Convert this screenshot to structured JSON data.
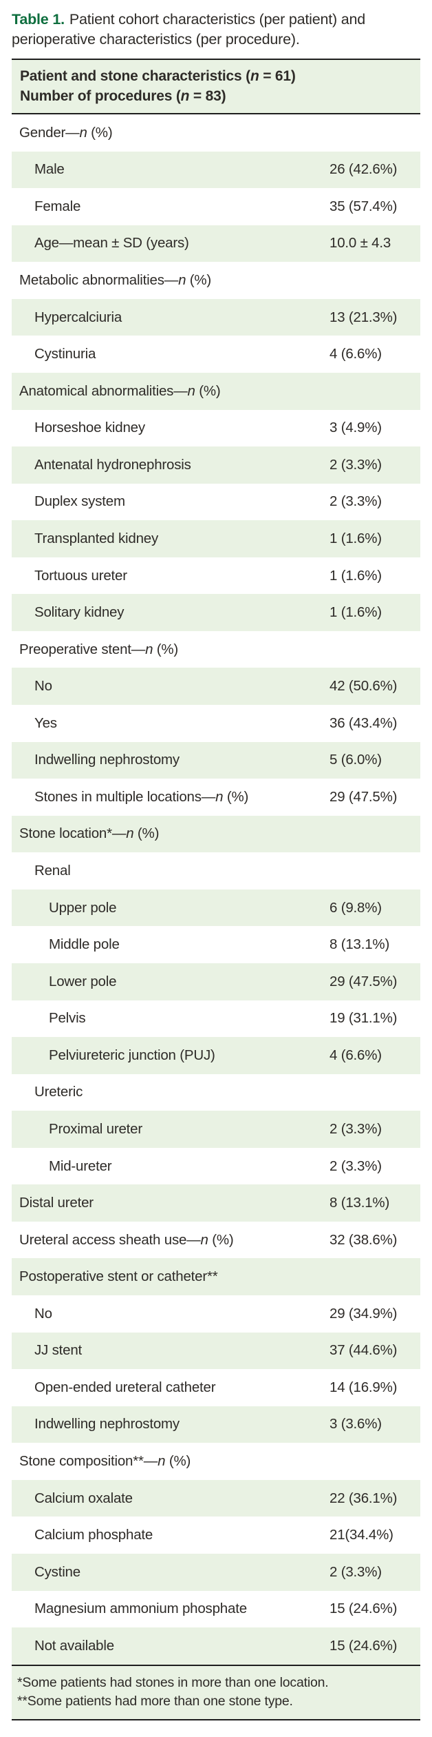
{
  "title": {
    "label": "Table 1.",
    "text": "Patient cohort characteristics (per patient) and perioperative characteristics (per procedure)."
  },
  "header": {
    "lines": [
      "Patient and stone characteristics (n = 61)",
      "Number of procedures (n = 83)"
    ]
  },
  "table": {
    "rows": [
      {
        "label": "Gender—n (%)",
        "value": "",
        "indent": 0,
        "shaded": false
      },
      {
        "label": "Male",
        "value": "26 (42.6%)",
        "indent": 1,
        "shaded": true
      },
      {
        "label": "Female",
        "value": "35 (57.4%)",
        "indent": 1,
        "shaded": false
      },
      {
        "label": "Age—mean ± SD (years)",
        "value": "10.0 ± 4.3",
        "indent": 1,
        "shaded": true
      },
      {
        "label": "Metabolic abnormalities—n (%)",
        "value": "",
        "indent": 0,
        "shaded": false
      },
      {
        "label": "Hypercalciuria",
        "value": "13 (21.3%)",
        "indent": 1,
        "shaded": true
      },
      {
        "label": "Cystinuria",
        "value": "4 (6.6%)",
        "indent": 1,
        "shaded": false
      },
      {
        "label": "Anatomical abnormalities—n (%)",
        "value": "",
        "indent": 0,
        "shaded": true
      },
      {
        "label": "Horseshoe kidney",
        "value": "3 (4.9%)",
        "indent": 1,
        "shaded": false
      },
      {
        "label": "Antenatal hydronephrosis",
        "value": "2 (3.3%)",
        "indent": 1,
        "shaded": true
      },
      {
        "label": "Duplex system",
        "value": "2 (3.3%)",
        "indent": 1,
        "shaded": false
      },
      {
        "label": "Transplanted kidney",
        "value": "1 (1.6%)",
        "indent": 1,
        "shaded": true
      },
      {
        "label": "Tortuous ureter",
        "value": "1 (1.6%)",
        "indent": 1,
        "shaded": false
      },
      {
        "label": "Solitary kidney",
        "value": "1 (1.6%)",
        "indent": 1,
        "shaded": true
      },
      {
        "label": "Preoperative stent—n (%)",
        "value": "",
        "indent": 0,
        "shaded": false
      },
      {
        "label": "No",
        "value": "42 (50.6%)",
        "indent": 1,
        "shaded": true
      },
      {
        "label": "Yes",
        "value": "36 (43.4%)",
        "indent": 1,
        "shaded": false
      },
      {
        "label": "Indwelling nephrostomy",
        "value": "5 (6.0%)",
        "indent": 1,
        "shaded": true
      },
      {
        "label": "Stones in multiple locations—n (%)",
        "value": "29 (47.5%)",
        "indent": 1,
        "shaded": false
      },
      {
        "label": "Stone location*—n (%)",
        "value": "",
        "indent": 0,
        "shaded": true
      },
      {
        "label": "Renal",
        "value": "",
        "indent": 1,
        "shaded": false
      },
      {
        "label": "Upper pole",
        "value": "6 (9.8%)",
        "indent": 2,
        "shaded": true
      },
      {
        "label": "Middle pole",
        "value": "8 (13.1%)",
        "indent": 2,
        "shaded": false
      },
      {
        "label": "Lower pole",
        "value": "29 (47.5%)",
        "indent": 2,
        "shaded": true
      },
      {
        "label": "Pelvis",
        "value": "19 (31.1%)",
        "indent": 2,
        "shaded": false
      },
      {
        "label": "Pelviureteric junction (PUJ)",
        "value": "4 (6.6%)",
        "indent": 2,
        "shaded": true
      },
      {
        "label": "Ureteric",
        "value": "",
        "indent": 1,
        "shaded": false
      },
      {
        "label": "Proximal ureter",
        "value": "2 (3.3%)",
        "indent": 2,
        "shaded": true
      },
      {
        "label": "Mid-ureter",
        "value": "2 (3.3%)",
        "indent": 2,
        "shaded": false
      },
      {
        "label": "Distal ureter",
        "value": "8 (13.1%)",
        "indent": 0,
        "shaded": true
      },
      {
        "label": "Ureteral access sheath use—n (%)",
        "value": "32 (38.6%)",
        "indent": 0,
        "shaded": false
      },
      {
        "label": "Postoperative stent or catheter**",
        "value": "",
        "indent": 0,
        "shaded": true
      },
      {
        "label": "No",
        "value": "29 (34.9%)",
        "indent": 1,
        "shaded": false
      },
      {
        "label": "JJ stent",
        "value": "37 (44.6%)",
        "indent": 1,
        "shaded": true
      },
      {
        "label": "Open-ended ureteral catheter",
        "value": "14 (16.9%)",
        "indent": 1,
        "shaded": false
      },
      {
        "label": "Indwelling nephrostomy",
        "value": "3 (3.6%)",
        "indent": 1,
        "shaded": true
      },
      {
        "label": "Stone composition**—n (%)",
        "value": "",
        "indent": 0,
        "shaded": false
      },
      {
        "label": "Calcium oxalate",
        "value": "22 (36.1%)",
        "indent": 1,
        "shaded": true
      },
      {
        "label": "Calcium phosphate",
        "value": "21(34.4%)",
        "indent": 1,
        "shaded": false
      },
      {
        "label": "Cystine",
        "value": "2 (3.3%)",
        "indent": 1,
        "shaded": true
      },
      {
        "label": "Magnesium ammonium phosphate",
        "value": "15 (24.6%)",
        "indent": 1,
        "shaded": false
      },
      {
        "label": "Not available",
        "value": "15 (24.6%)",
        "indent": 1,
        "shaded": true
      }
    ]
  },
  "footnotes": [
    "*Some patients had stones in more than one location.",
    "**Some patients had more than one stone type."
  ],
  "colors": {
    "accent_green": "#0e6e3e",
    "row_shade_green": "#e9f2e3",
    "border_dark": "#1e1e1e",
    "text": "#2e2b28"
  }
}
